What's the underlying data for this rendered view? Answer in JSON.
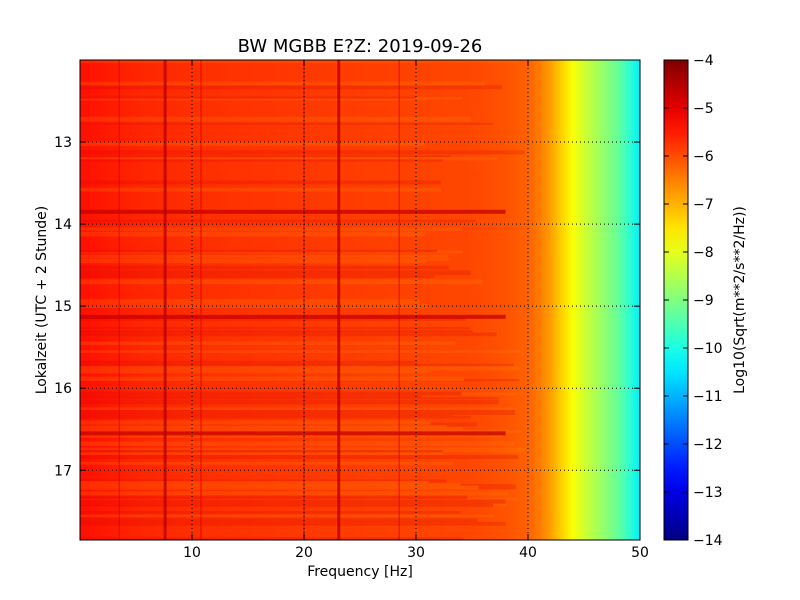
{
  "chart_data": {
    "type": "heatmap",
    "title": "BW MGBB E?Z: 2019-09-26",
    "xlabel": "Frequency [Hz]",
    "ylabel": "Lokalzeit (UTC + 2 Stunde)",
    "xlim": [
      0,
      50
    ],
    "ylim": [
      17.85,
      12.0
    ],
    "y_inverted": true,
    "grid": true,
    "x_ticks": [
      10,
      20,
      30,
      40,
      50
    ],
    "y_ticks": [
      13,
      14,
      15,
      16,
      17
    ],
    "colorbar": {
      "label": "Log10(Sqrt(m**2/s**2/Hz))",
      "colormap": "jet",
      "range": [
        -14,
        -4
      ],
      "ticks": [
        -4,
        -5,
        -6,
        -7,
        -8,
        -9,
        -10,
        -11,
        -12,
        -13,
        -14
      ]
    },
    "spectrum_profile": {
      "frequency_hz": [
        0,
        5,
        10,
        15,
        20,
        25,
        30,
        35,
        38,
        40,
        41,
        42,
        43,
        44,
        45,
        46,
        47,
        48,
        49,
        50
      ],
      "log10_psd": [
        -5.4,
        -5.6,
        -5.7,
        -5.75,
        -5.8,
        -5.85,
        -5.9,
        -5.95,
        -6.05,
        -6.2,
        -6.45,
        -6.8,
        -7.3,
        -7.8,
        -8.2,
        -8.55,
        -8.9,
        -9.25,
        -9.75,
        -10.4
      ]
    },
    "features": {
      "strong_lines_hz": [
        7.6,
        23.1
      ],
      "weak_lines_hz": [
        3.5,
        10.8,
        20.0,
        28.5
      ],
      "horizontal_events_hours": [
        13.85,
        15.13,
        16.55
      ]
    }
  }
}
